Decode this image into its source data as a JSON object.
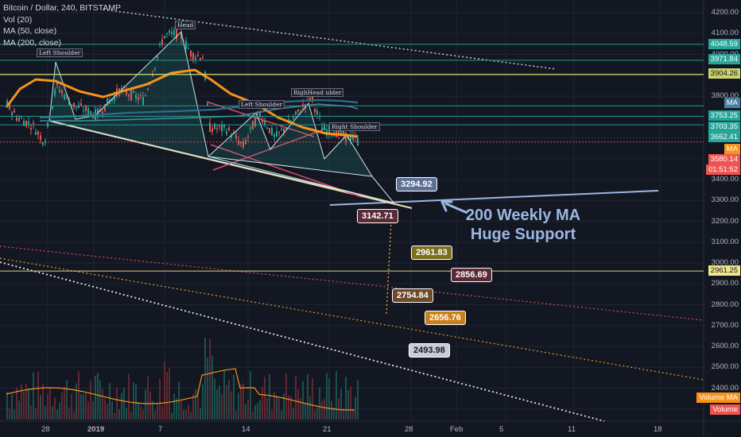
{
  "legend": {
    "title": "Bitcoin / Dollar, 240, BITSTAMP",
    "items": [
      "Vol (20)",
      "MA (50, close)",
      "MA (200, close)"
    ]
  },
  "chart_data": {
    "type": "candlestick",
    "symbol": "Bitcoin / Dollar",
    "interval": "240",
    "exchange": "BITSTAMP",
    "y_axis_ticks": [
      4200,
      4100,
      4000,
      3900,
      3800,
      3700,
      3600,
      3500,
      3400,
      3300,
      3200,
      3100,
      3000,
      2900,
      2800,
      2700,
      2600,
      2500,
      2400,
      2300
    ],
    "ylim": [
      2270,
      4220
    ],
    "x_axis_ticks": [
      "28",
      "2019",
      "7",
      "14",
      "21",
      "28",
      "Feb",
      "5",
      "11",
      "18"
    ],
    "price_badges": [
      {
        "value": "4048.59",
        "color": "#26a69a"
      },
      {
        "value": "3971.84",
        "color": "#26a69a"
      },
      {
        "value": "3904.26",
        "color": "#c7d36b"
      },
      {
        "value": "MA",
        "color": "#4a7fa5"
      },
      {
        "value": "3753.25",
        "color": "#26a69a"
      },
      {
        "value": "3703.35",
        "color": "#26a69a"
      },
      {
        "value": "3662.41",
        "color": "#26a69a"
      },
      {
        "value": "MA",
        "color": "#f7931a"
      },
      {
        "value": "3580.14",
        "color": "#ef5350"
      },
      {
        "value": "01:51:52",
        "color": "#ef5350"
      },
      {
        "value": "2961.25",
        "color": "#f0e68c"
      },
      {
        "value": "Volume MA",
        "color": "#f7931a"
      },
      {
        "value": "Volume",
        "color": "#ef5350"
      }
    ],
    "horizontal_levels": [
      4048.59,
      3971.84,
      3904.26,
      3753.25,
      3703.35,
      3662.41,
      3580.14,
      2961.25
    ],
    "projection_targets": [
      {
        "value": "3294.92",
        "color": "#5d7196"
      },
      {
        "value": "3142.71",
        "color": "#5a2a35"
      },
      {
        "value": "2961.83",
        "color": "#7a6e1f"
      },
      {
        "value": "2856.69",
        "color": "#5a2a35"
      },
      {
        "value": "2754.84",
        "color": "#6b4a2a"
      },
      {
        "value": "2656.76",
        "color": "#c9801a"
      },
      {
        "value": "2493.98",
        "color": "#c8ccd4"
      }
    ],
    "pattern_labels": [
      "Left Shoulder",
      "Head",
      "Left Shoulder",
      "RighHead ulder",
      "Right Shoulder"
    ],
    "annotation": [
      "200 Weekly MA",
      "Huge Support"
    ]
  }
}
